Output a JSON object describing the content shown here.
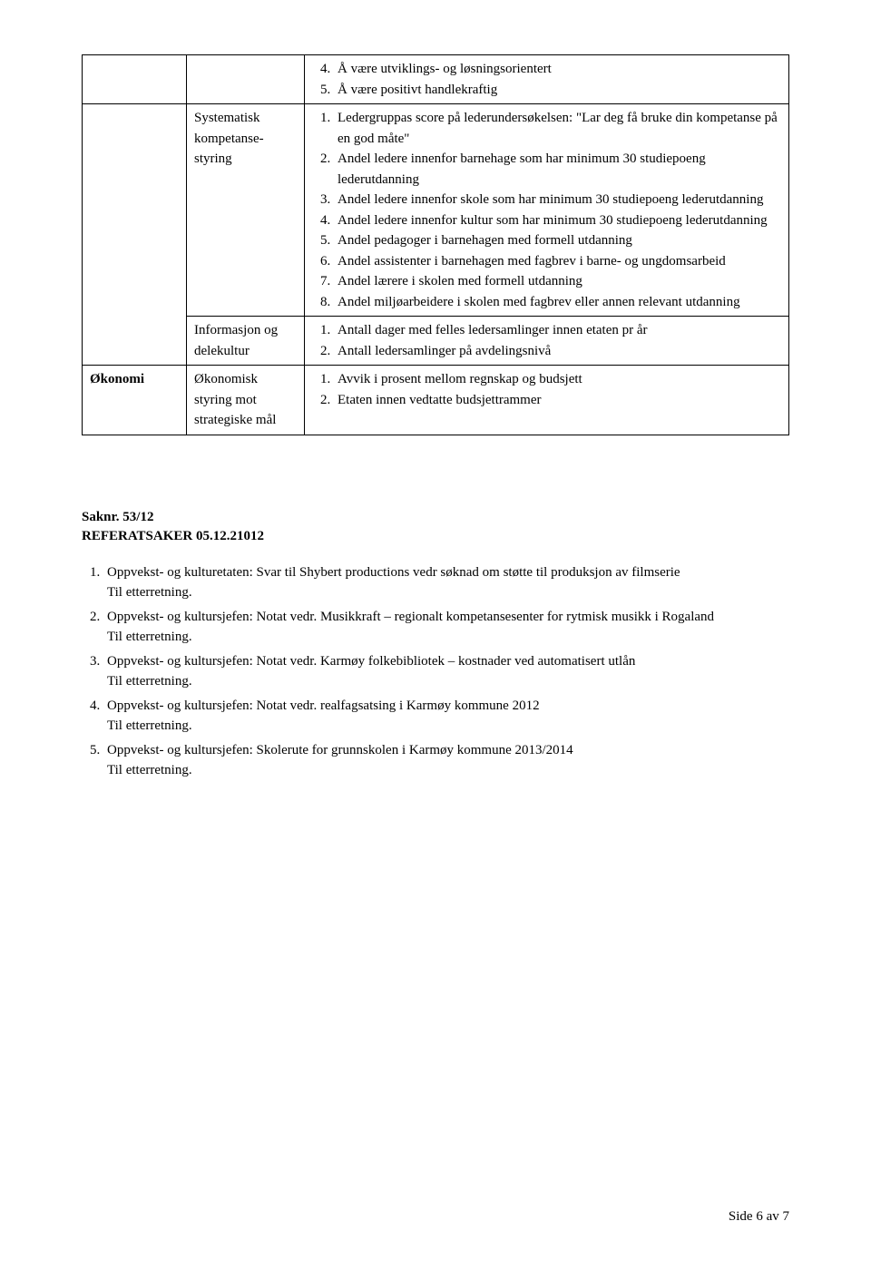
{
  "table": {
    "row1": {
      "col3_items": [
        "Å være utviklings- og løsningsorientert",
        "Å være positivt handlekraftig"
      ],
      "col3_start": 4
    },
    "row2a": {
      "col2": "Systematisk kompetanse-styring",
      "col3_items": [
        "Ledergruppas score på lederundersøkelsen: \"Lar deg få bruke din kompetanse på en god måte\"",
        "Andel ledere innenfor barnehage som har minimum 30 studiepoeng lederutdanning",
        "Andel ledere innenfor skole som har minimum 30 studiepoeng lederutdanning",
        "Andel ledere innenfor kultur som har minimum 30 studiepoeng lederutdanning",
        "Andel pedagoger i barnehagen med formell utdanning",
        "Andel assistenter i barnehagen med fagbrev i barne- og ungdomsarbeid",
        "Andel lærere i skolen med formell utdanning",
        "Andel miljøarbeidere i skolen med fagbrev eller annen relevant utdanning"
      ]
    },
    "row2b": {
      "col2": "Informasjon og delekultur",
      "col3_items": [
        "Antall dager med felles ledersamlinger innen etaten pr år",
        "Antall ledersamlinger på avdelingsnivå"
      ]
    },
    "row3": {
      "col1": "Økonomi",
      "col2": "Økonomisk styring mot strategiske mål",
      "col3_items": [
        "Avvik i prosent mellom regnskap og budsjett",
        "Etaten innen vedtatte budsjettrammer"
      ]
    }
  },
  "section": {
    "line1": "Saknr. 53/12",
    "line2": "REFERATSAKER 05.12.21012"
  },
  "body_list": [
    {
      "text": "Oppvekst- og kulturetaten: Svar til Shybert productions vedr søknad om støtte til produksjon av filmserie",
      "suffix": "Til etterretning."
    },
    {
      "text": "Oppvekst- og kultursjefen: Notat vedr. Musikkraft – regionalt kompetansesenter for rytmisk musikk i Rogaland",
      "suffix": "Til etterretning."
    },
    {
      "text": "Oppvekst- og kultursjefen: Notat vedr. Karmøy folkebibliotek – kostnader ved automatisert utlån",
      "suffix": "Til etterretning."
    },
    {
      "text": "Oppvekst- og kultursjefen: Notat vedr. realfagsatsing i Karmøy kommune 2012",
      "suffix": "Til etterretning."
    },
    {
      "text": "Oppvekst- og kultursjefen: Skolerute for grunnskolen i Karmøy kommune 2013/2014",
      "suffix": "Til etterretning."
    }
  ],
  "footer": "Side 6 av 7"
}
